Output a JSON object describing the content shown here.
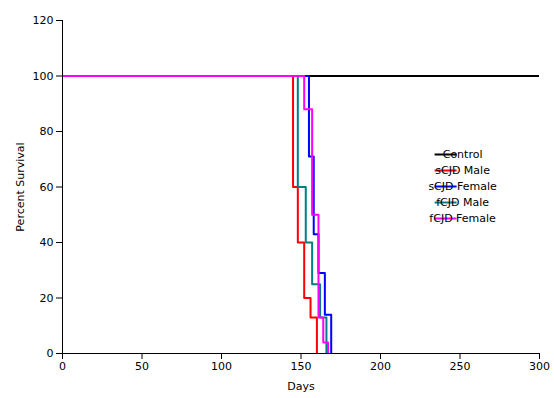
{
  "chart_data": {
    "type": "line",
    "xlabel": "Days",
    "ylabel": "Percent Survival",
    "xlim": [
      0,
      300
    ],
    "ylim": [
      0,
      120
    ],
    "xticks": [
      0,
      50,
      100,
      150,
      200,
      250,
      300
    ],
    "yticks": [
      0,
      20,
      40,
      60,
      80,
      100,
      120
    ],
    "grid": false,
    "legend": "center right",
    "series": [
      {
        "name": "Control",
        "color": "#000000",
        "x": [
          0,
          300
        ],
        "values": [
          100,
          100
        ]
      },
      {
        "name": "sCJD Male",
        "color": "#ff0000",
        "x": [
          0,
          145,
          145,
          148,
          148,
          152,
          152,
          156,
          156,
          160,
          160
        ],
        "values": [
          100,
          100,
          60,
          60,
          40,
          40,
          20,
          20,
          13,
          13,
          0
        ]
      },
      {
        "name": "sCJD Female",
        "color": "#0000ff",
        "x": [
          0,
          155,
          155,
          158,
          158,
          161,
          161,
          165,
          165,
          169,
          169
        ],
        "values": [
          100,
          100,
          71,
          71,
          43,
          43,
          29,
          29,
          14,
          14,
          0
        ]
      },
      {
        "name": "fCJD Male",
        "color": "#008080",
        "x": [
          0,
          148,
          148,
          153,
          153,
          157,
          157,
          162,
          162,
          166,
          166
        ],
        "values": [
          100,
          100,
          60,
          60,
          40,
          40,
          25,
          25,
          13,
          13,
          0
        ]
      },
      {
        "name": "fCJD Female",
        "color": "#ff00ff",
        "x": [
          0,
          152,
          152,
          157,
          157,
          161,
          161,
          164,
          164,
          167,
          167
        ],
        "values": [
          100,
          100,
          88,
          88,
          50,
          50,
          13,
          13,
          4,
          4,
          0
        ]
      }
    ]
  }
}
